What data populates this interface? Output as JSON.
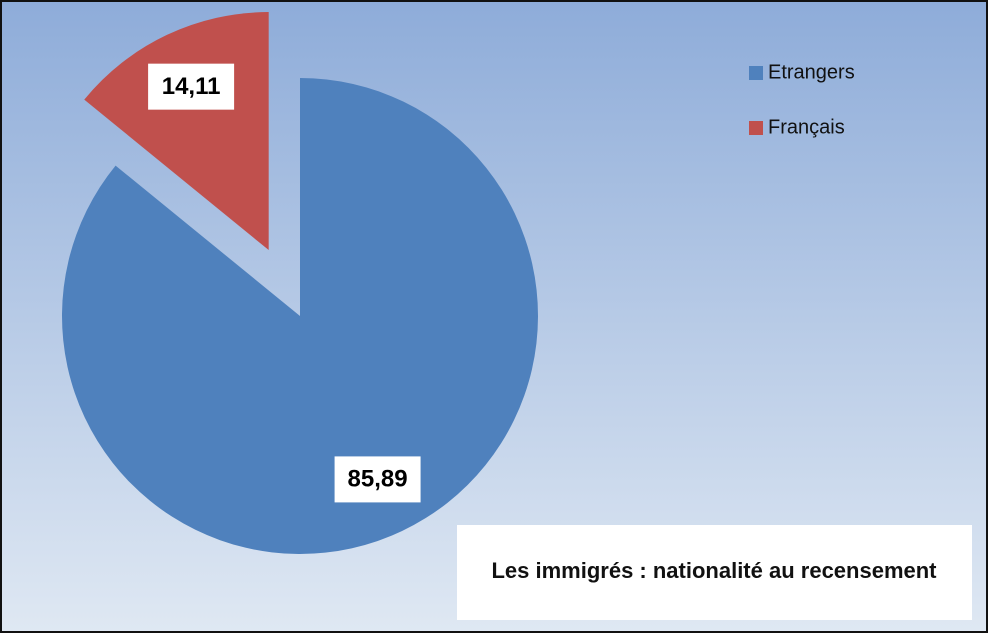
{
  "chart_data": {
    "type": "pie",
    "title": "Les immigrés : nationalité au recensement",
    "categories": [
      "Etrangers",
      "Français"
    ],
    "values": [
      85.89,
      14.11
    ],
    "value_labels": [
      "85,89",
      "14,11"
    ],
    "colors": [
      "#4f81bd",
      "#c0504d"
    ],
    "legend": "top-right"
  }
}
